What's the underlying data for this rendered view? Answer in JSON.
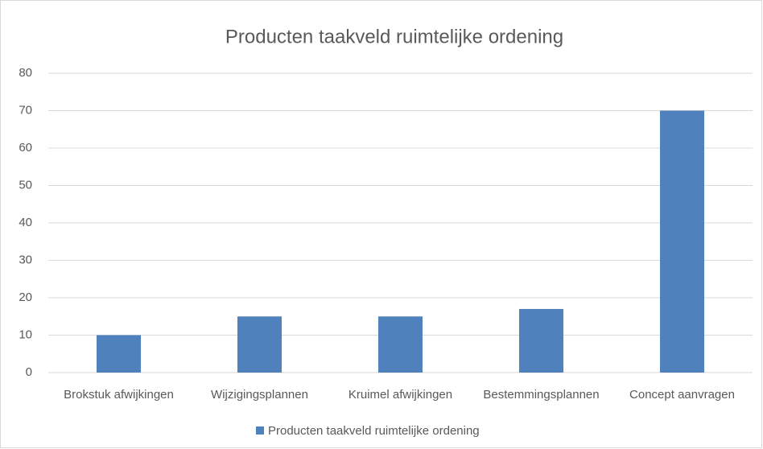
{
  "chart_data": {
    "type": "bar",
    "title": "Producten taakveld ruimtelijke ordening",
    "categories": [
      "Brokstuk afwijkingen",
      "Wijzigingsplannen",
      "Kruimel afwijkingen",
      "Bestemmingsplannen",
      "Concept aanvragen"
    ],
    "series": [
      {
        "name": "Producten taakveld ruimtelijke ordening",
        "color": "#4f81bd",
        "values": [
          10,
          15,
          15,
          17,
          70
        ]
      }
    ],
    "ylim": [
      0,
      80
    ],
    "yticks": [
      0,
      10,
      20,
      30,
      40,
      50,
      60,
      70,
      80
    ],
    "grid": true,
    "legend": "bottom"
  }
}
